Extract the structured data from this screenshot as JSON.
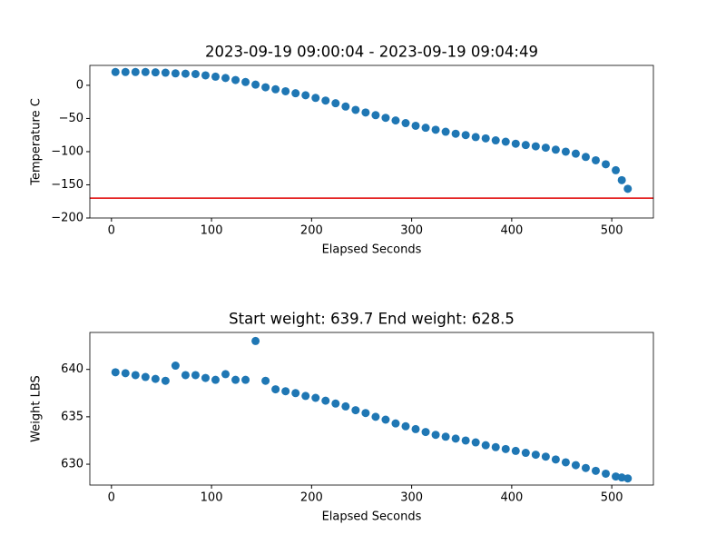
{
  "chart_data": [
    {
      "type": "scatter",
      "title": "2023-09-19 09:00:04 - 2023-09-19 09:04:49",
      "xlabel": "Elapsed Seconds",
      "ylabel": "Temperature C",
      "x": [
        4,
        14,
        24,
        34,
        44,
        54,
        64,
        74,
        84,
        94,
        104,
        114,
        124,
        134,
        144,
        154,
        164,
        174,
        184,
        194,
        204,
        214,
        224,
        234,
        244,
        254,
        264,
        274,
        284,
        294,
        304,
        314,
        324,
        334,
        344,
        354,
        364,
        374,
        384,
        394,
        404,
        414,
        424,
        434,
        444,
        454,
        464,
        474,
        484,
        494,
        504,
        510,
        516
      ],
      "values": [
        20,
        20,
        20,
        20,
        19.5,
        19,
        18,
        17.5,
        17,
        15,
        13,
        11,
        8,
        5,
        1,
        -3,
        -6,
        -9,
        -12,
        -15,
        -19,
        -23,
        -27,
        -32,
        -37,
        -41,
        -45,
        -49,
        -53,
        -57,
        -61,
        -64,
        -67,
        -70,
        -73,
        -75,
        -78,
        -80,
        -83,
        -85,
        -88,
        -90,
        -92,
        -94,
        -97,
        -100,
        -103,
        -108,
        -113,
        -119,
        -128,
        -143,
        -156
      ],
      "color": "#1f77b4",
      "reference_line": {
        "value": -170,
        "color": "#e00000"
      },
      "xlim": [
        -21.6,
        541.6
      ],
      "xticks": [
        0,
        100,
        200,
        300,
        400,
        500
      ],
      "ylim": [
        -200,
        30
      ],
      "yticks": [
        0,
        {
          "value": -50,
          "label": "−50"
        },
        {
          "value": -100,
          "label": "−100"
        },
        {
          "value": -150,
          "label": "−150"
        },
        {
          "value": -200,
          "label": "−200"
        }
      ]
    },
    {
      "type": "scatter",
      "title": "Start weight: 639.7 End weight: 628.5",
      "xlabel": "Elapsed Seconds",
      "ylabel": "Weight LBS",
      "x": [
        4,
        14,
        24,
        34,
        44,
        54,
        64,
        74,
        84,
        94,
        104,
        114,
        124,
        134,
        144,
        154,
        164,
        174,
        184,
        194,
        204,
        214,
        224,
        234,
        244,
        254,
        264,
        274,
        284,
        294,
        304,
        314,
        324,
        334,
        344,
        354,
        364,
        374,
        384,
        394,
        404,
        414,
        424,
        434,
        444,
        454,
        464,
        474,
        484,
        494,
        504,
        510,
        516
      ],
      "values": [
        639.7,
        639.6,
        639.4,
        639.2,
        639.0,
        638.8,
        640.4,
        639.4,
        639.4,
        639.1,
        638.9,
        639.5,
        638.9,
        638.9,
        643.0,
        638.8,
        637.9,
        637.7,
        637.5,
        637.2,
        637.0,
        636.7,
        636.4,
        636.1,
        635.7,
        635.4,
        635.0,
        634.7,
        634.3,
        634.0,
        633.7,
        633.4,
        633.1,
        632.9,
        632.7,
        632.5,
        632.3,
        632.0,
        631.8,
        631.6,
        631.4,
        631.2,
        631.0,
        630.8,
        630.5,
        630.2,
        629.9,
        629.6,
        629.3,
        629.0,
        628.7,
        628.6,
        628.5
      ],
      "color": "#1f77b4",
      "xlim": [
        -21.6,
        541.6
      ],
      "xticks": [
        0,
        100,
        200,
        300,
        400,
        500
      ],
      "ylim": [
        627.8,
        643.9
      ],
      "yticks": [
        630,
        635,
        640
      ]
    }
  ]
}
